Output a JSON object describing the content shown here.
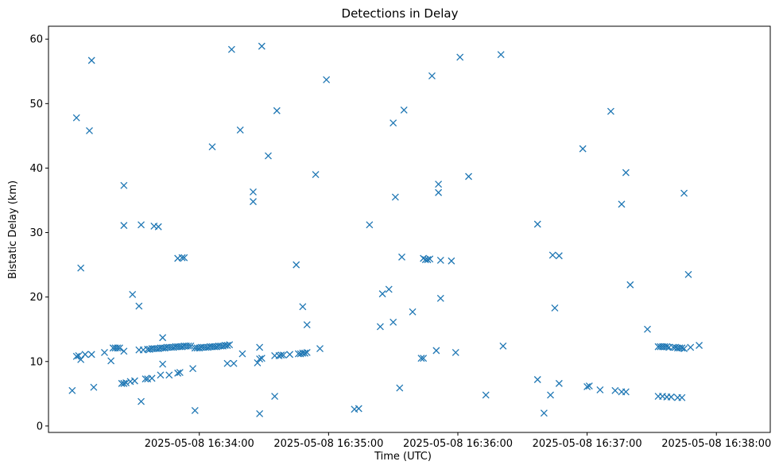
{
  "chart_data": {
    "type": "scatter",
    "title": "Detections in Delay",
    "xlabel": "Time (UTC)",
    "ylabel": "Bistatic Delay (km)",
    "marker": "x",
    "marker_color": "#1f77b4",
    "grid": false,
    "legend": "none",
    "x_unit": "timestamp (YYYY-MM-DD HH:MM:SS, UTC)",
    "xlim": [
      "2025-05-08 16:32:50",
      "2025-05-08 16:38:25"
    ],
    "ylim": [
      -1,
      62
    ],
    "x_ticks": [
      "2025-05-08 16:34:00",
      "2025-05-08 16:35:00",
      "2025-05-08 16:36:00",
      "2025-05-08 16:37:00",
      "2025-05-08 16:38:00"
    ],
    "y_ticks": [
      0,
      10,
      20,
      30,
      40,
      50,
      60
    ],
    "points": [
      [
        "2025-05-08 16:33:01",
        5.5
      ],
      [
        "2025-05-08 16:33:03",
        47.8
      ],
      [
        "2025-05-08 16:33:03",
        10.8
      ],
      [
        "2025-05-08 16:33:04",
        10.9
      ],
      [
        "2025-05-08 16:33:05",
        24.5
      ],
      [
        "2025-05-08 16:33:05",
        10.3
      ],
      [
        "2025-05-08 16:33:07",
        11.1
      ],
      [
        "2025-05-08 16:33:09",
        45.8
      ],
      [
        "2025-05-08 16:33:10",
        56.7
      ],
      [
        "2025-05-08 16:33:10",
        11.1
      ],
      [
        "2025-05-08 16:33:11",
        6.0
      ],
      [
        "2025-05-08 16:33:16",
        11.4
      ],
      [
        "2025-05-08 16:33:19",
        10.1
      ],
      [
        "2025-05-08 16:33:20",
        12.1
      ],
      [
        "2025-05-08 16:33:21",
        12.1
      ],
      [
        "2025-05-08 16:33:22",
        12.1
      ],
      [
        "2025-05-08 16:33:23",
        12.1
      ],
      [
        "2025-05-08 16:33:24",
        6.6
      ],
      [
        "2025-05-08 16:33:25",
        37.3
      ],
      [
        "2025-05-08 16:33:25",
        31.1
      ],
      [
        "2025-05-08 16:33:25",
        11.6
      ],
      [
        "2025-05-08 16:33:25",
        6.6
      ],
      [
        "2025-05-08 16:33:26",
        6.7
      ],
      [
        "2025-05-08 16:33:28",
        6.9
      ],
      [
        "2025-05-08 16:33:29",
        20.4
      ],
      [
        "2025-05-08 16:33:30",
        7.0
      ],
      [
        "2025-05-08 16:33:32",
        18.6
      ],
      [
        "2025-05-08 16:33:32",
        11.8
      ],
      [
        "2025-05-08 16:33:33",
        3.8
      ],
      [
        "2025-05-08 16:33:33",
        31.2
      ],
      [
        "2025-05-08 16:33:34",
        11.8
      ],
      [
        "2025-05-08 16:33:35",
        7.3
      ],
      [
        "2025-05-08 16:33:36",
        11.9
      ],
      [
        "2025-05-08 16:33:36",
        7.3
      ],
      [
        "2025-05-08 16:33:37",
        11.9
      ],
      [
        "2025-05-08 16:33:38",
        7.4
      ],
      [
        "2025-05-08 16:33:38",
        12.0
      ],
      [
        "2025-05-08 16:33:39",
        31.0
      ],
      [
        "2025-05-08 16:33:39",
        12.0
      ],
      [
        "2025-05-08 16:33:40",
        12.0
      ],
      [
        "2025-05-08 16:33:41",
        30.9
      ],
      [
        "2025-05-08 16:33:41",
        12.0
      ],
      [
        "2025-05-08 16:33:42",
        7.9
      ],
      [
        "2025-05-08 16:33:42",
        12.1
      ],
      [
        "2025-05-08 16:33:43",
        12.1
      ],
      [
        "2025-05-08 16:33:43",
        13.7
      ],
      [
        "2025-05-08 16:33:43",
        9.6
      ],
      [
        "2025-05-08 16:33:44",
        12.1
      ],
      [
        "2025-05-08 16:33:45",
        12.2
      ],
      [
        "2025-05-08 16:33:46",
        7.9
      ],
      [
        "2025-05-08 16:33:46",
        12.2
      ],
      [
        "2025-05-08 16:33:47",
        12.2
      ],
      [
        "2025-05-08 16:33:48",
        12.2
      ],
      [
        "2025-05-08 16:33:49",
        12.3
      ],
      [
        "2025-05-08 16:33:50",
        26.0
      ],
      [
        "2025-05-08 16:33:50",
        12.3
      ],
      [
        "2025-05-08 16:33:50",
        8.2
      ],
      [
        "2025-05-08 16:33:51",
        8.3
      ],
      [
        "2025-05-08 16:33:51",
        12.3
      ],
      [
        "2025-05-08 16:33:52",
        26.1
      ],
      [
        "2025-05-08 16:33:52",
        12.3
      ],
      [
        "2025-05-08 16:33:53",
        26.1
      ],
      [
        "2025-05-08 16:33:53",
        12.4
      ],
      [
        "2025-05-08 16:33:54",
        12.4
      ],
      [
        "2025-05-08 16:33:55",
        12.4
      ],
      [
        "2025-05-08 16:33:56",
        12.4
      ],
      [
        "2025-05-08 16:33:57",
        8.9
      ],
      [
        "2025-05-08 16:33:58",
        12.1
      ],
      [
        "2025-05-08 16:33:58",
        2.4
      ],
      [
        "2025-05-08 16:33:59",
        12.1
      ],
      [
        "2025-05-08 16:34:00",
        12.1
      ],
      [
        "2025-05-08 16:34:01",
        12.2
      ],
      [
        "2025-05-08 16:34:02",
        12.2
      ],
      [
        "2025-05-08 16:34:03",
        12.2
      ],
      [
        "2025-05-08 16:34:04",
        12.2
      ],
      [
        "2025-05-08 16:34:05",
        12.3
      ],
      [
        "2025-05-08 16:34:06",
        12.3
      ],
      [
        "2025-05-08 16:34:06",
        43.3
      ],
      [
        "2025-05-08 16:34:07",
        12.3
      ],
      [
        "2025-05-08 16:34:08",
        12.3
      ],
      [
        "2025-05-08 16:34:09",
        12.4
      ],
      [
        "2025-05-08 16:34:10",
        12.4
      ],
      [
        "2025-05-08 16:34:11",
        12.4
      ],
      [
        "2025-05-08 16:34:12",
        12.5
      ],
      [
        "2025-05-08 16:34:13",
        12.5
      ],
      [
        "2025-05-08 16:34:13",
        9.7
      ],
      [
        "2025-05-08 16:34:14",
        12.6
      ],
      [
        "2025-05-08 16:34:15",
        58.4
      ],
      [
        "2025-05-08 16:34:16",
        9.7
      ],
      [
        "2025-05-08 16:34:19",
        45.9
      ],
      [
        "2025-05-08 16:34:20",
        11.2
      ],
      [
        "2025-05-08 16:34:25",
        36.3
      ],
      [
        "2025-05-08 16:34:25",
        34.8
      ],
      [
        "2025-05-08 16:34:27",
        9.8
      ],
      [
        "2025-05-08 16:34:28",
        10.4
      ],
      [
        "2025-05-08 16:34:28",
        12.2
      ],
      [
        "2025-05-08 16:34:28",
        1.9
      ],
      [
        "2025-05-08 16:34:29",
        58.9
      ],
      [
        "2025-05-08 16:34:29",
        10.5
      ],
      [
        "2025-05-08 16:34:32",
        41.9
      ],
      [
        "2025-05-08 16:34:35",
        10.9
      ],
      [
        "2025-05-08 16:34:35",
        4.6
      ],
      [
        "2025-05-08 16:34:36",
        48.9
      ],
      [
        "2025-05-08 16:34:37",
        10.9
      ],
      [
        "2025-05-08 16:34:38",
        11.0
      ],
      [
        "2025-05-08 16:34:39",
        11.0
      ],
      [
        "2025-05-08 16:34:42",
        11.1
      ],
      [
        "2025-05-08 16:34:45",
        25.0
      ],
      [
        "2025-05-08 16:34:46",
        11.2
      ],
      [
        "2025-05-08 16:34:47",
        11.2
      ],
      [
        "2025-05-08 16:34:48",
        18.5
      ],
      [
        "2025-05-08 16:34:48",
        11.3
      ],
      [
        "2025-05-08 16:34:49",
        11.3
      ],
      [
        "2025-05-08 16:34:50",
        15.7
      ],
      [
        "2025-05-08 16:34:50",
        11.4
      ],
      [
        "2025-05-08 16:34:54",
        39.0
      ],
      [
        "2025-05-08 16:34:56",
        12.0
      ],
      [
        "2025-05-08 16:34:59",
        53.7
      ],
      [
        "2025-05-08 16:35:12",
        2.6
      ],
      [
        "2025-05-08 16:35:14",
        2.7
      ],
      [
        "2025-05-08 16:35:19",
        31.2
      ],
      [
        "2025-05-08 16:35:24",
        15.4
      ],
      [
        "2025-05-08 16:35:25",
        20.5
      ],
      [
        "2025-05-08 16:35:28",
        21.2
      ],
      [
        "2025-05-08 16:35:30",
        16.1
      ],
      [
        "2025-05-08 16:35:30",
        47.0
      ],
      [
        "2025-05-08 16:35:31",
        35.5
      ],
      [
        "2025-05-08 16:35:33",
        5.9
      ],
      [
        "2025-05-08 16:35:34",
        26.2
      ],
      [
        "2025-05-08 16:35:35",
        49.0
      ],
      [
        "2025-05-08 16:35:39",
        17.7
      ],
      [
        "2025-05-08 16:35:43",
        10.5
      ],
      [
        "2025-05-08 16:35:44",
        10.5
      ],
      [
        "2025-05-08 16:35:44",
        26.0
      ],
      [
        "2025-05-08 16:35:45",
        25.8
      ],
      [
        "2025-05-08 16:35:46",
        25.8
      ],
      [
        "2025-05-08 16:35:47",
        25.9
      ],
      [
        "2025-05-08 16:35:48",
        54.3
      ],
      [
        "2025-05-08 16:35:50",
        11.7
      ],
      [
        "2025-05-08 16:35:51",
        36.2
      ],
      [
        "2025-05-08 16:35:51",
        37.5
      ],
      [
        "2025-05-08 16:35:52",
        25.7
      ],
      [
        "2025-05-08 16:35:52",
        19.8
      ],
      [
        "2025-05-08 16:35:57",
        25.6
      ],
      [
        "2025-05-08 16:35:59",
        11.4
      ],
      [
        "2025-05-08 16:36:01",
        57.2
      ],
      [
        "2025-05-08 16:36:05",
        38.7
      ],
      [
        "2025-05-08 16:36:13",
        4.8
      ],
      [
        "2025-05-08 16:36:20",
        57.6
      ],
      [
        "2025-05-08 16:36:21",
        12.4
      ],
      [
        "2025-05-08 16:36:37",
        31.3
      ],
      [
        "2025-05-08 16:36:37",
        7.2
      ],
      [
        "2025-05-08 16:36:40",
        2.0
      ],
      [
        "2025-05-08 16:36:43",
        4.8
      ],
      [
        "2025-05-08 16:36:44",
        26.5
      ],
      [
        "2025-05-08 16:36:45",
        18.3
      ],
      [
        "2025-05-08 16:36:47",
        26.4
      ],
      [
        "2025-05-08 16:36:47",
        6.6
      ],
      [
        "2025-05-08 16:36:58",
        43.0
      ],
      [
        "2025-05-08 16:37:00",
        6.1
      ],
      [
        "2025-05-08 16:37:01",
        6.2
      ],
      [
        "2025-05-08 16:37:06",
        5.6
      ],
      [
        "2025-05-08 16:37:11",
        48.8
      ],
      [
        "2025-05-08 16:37:13",
        5.5
      ],
      [
        "2025-05-08 16:37:16",
        34.4
      ],
      [
        "2025-05-08 16:37:16",
        5.3
      ],
      [
        "2025-05-08 16:37:18",
        39.3
      ],
      [
        "2025-05-08 16:37:18",
        5.3
      ],
      [
        "2025-05-08 16:37:20",
        21.9
      ],
      [
        "2025-05-08 16:37:28",
        15.0
      ],
      [
        "2025-05-08 16:37:33",
        12.3
      ],
      [
        "2025-05-08 16:37:33",
        4.6
      ],
      [
        "2025-05-08 16:37:34",
        12.3
      ],
      [
        "2025-05-08 16:37:35",
        12.3
      ],
      [
        "2025-05-08 16:37:35",
        4.6
      ],
      [
        "2025-05-08 16:37:36",
        12.3
      ],
      [
        "2025-05-08 16:37:37",
        12.3
      ],
      [
        "2025-05-08 16:37:37",
        4.5
      ],
      [
        "2025-05-08 16:37:38",
        12.2
      ],
      [
        "2025-05-08 16:37:39",
        4.5
      ],
      [
        "2025-05-08 16:37:40",
        12.2
      ],
      [
        "2025-05-08 16:37:41",
        12.2
      ],
      [
        "2025-05-08 16:37:42",
        4.4
      ],
      [
        "2025-05-08 16:37:42",
        12.1
      ],
      [
        "2025-05-08 16:37:43",
        12.1
      ],
      [
        "2025-05-08 16:37:44",
        4.4
      ],
      [
        "2025-05-08 16:37:44",
        12.1
      ],
      [
        "2025-05-08 16:37:45",
        12.0
      ],
      [
        "2025-05-08 16:37:45",
        36.1
      ],
      [
        "2025-05-08 16:37:47",
        23.5
      ],
      [
        "2025-05-08 16:37:48",
        12.2
      ],
      [
        "2025-05-08 16:37:52",
        12.5
      ]
    ]
  }
}
